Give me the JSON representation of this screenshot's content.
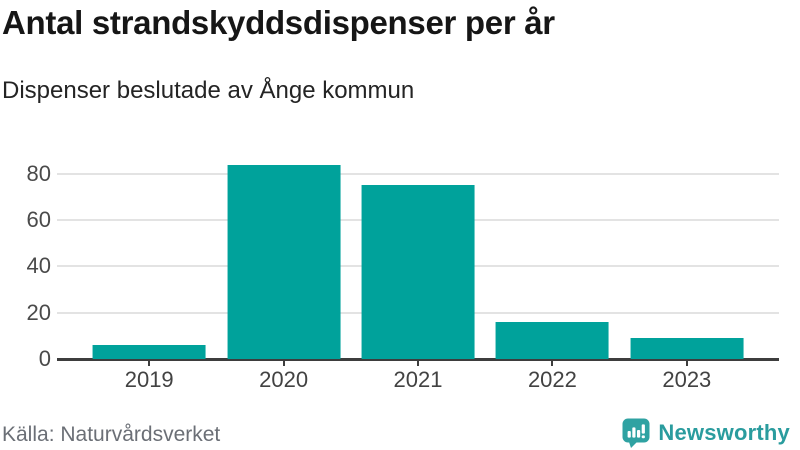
{
  "header": {
    "title": "Antal strandskyddsdispenser per år",
    "subtitle": "Dispenser beslutade av Ånge kommun"
  },
  "chart_data": {
    "type": "bar",
    "categories": [
      "2019",
      "2020",
      "2021",
      "2022",
      "2023"
    ],
    "values": [
      6,
      84,
      75,
      16,
      9
    ],
    "title": "Antal strandskyddsdispenser per år",
    "subtitle": "Dispenser beslutade av Ånge kommun",
    "xlabel": "",
    "ylabel": "",
    "ylim": [
      0,
      86
    ],
    "yticks": [
      0,
      20,
      40,
      60,
      80
    ],
    "grid": true,
    "legend": "none",
    "bar_color": "#00a29b"
  },
  "footer": {
    "source": "Källa: Naturvårdsverket",
    "brand": "Newsworthy"
  },
  "colors": {
    "bar": "#00a29b",
    "gridline": "#e3e3e3",
    "axis": "#3d3d3d",
    "axis_label": "#4a4a4a",
    "title_text": "#161616",
    "source_text": "#6b6f76",
    "brand_teal": "#2a9c9e",
    "logo_icon_teal": "#2fa2a2"
  },
  "icons": {
    "logo": "newsworthy-speech-bubble-barchart-icon"
  }
}
